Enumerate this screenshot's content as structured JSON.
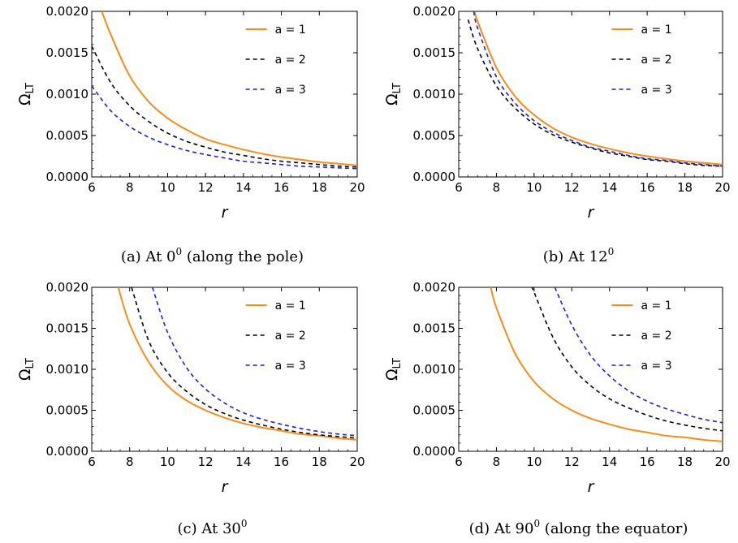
{
  "chart_data": [
    {
      "type": "line",
      "caption": "(a) At 0",
      "caption_sup": "0",
      "caption_tail": "(along the pole)",
      "xlabel": "r",
      "ylabel": "Ω",
      "ylabel_sub": "LT",
      "xlim": [
        6,
        20
      ],
      "ylim": [
        0,
        0.002
      ],
      "xticks": [
        "6",
        "8",
        "10",
        "12",
        "14",
        "16",
        "18",
        "20"
      ],
      "yticks": [
        "0.0000",
        "0.0005",
        "0.0010",
        "0.0015",
        "0.0020"
      ],
      "legend_position": "top-right",
      "series": [
        {
          "name": "a = 1",
          "color": "#F28E1C",
          "style": "solid",
          "x": [
            6.5,
            7,
            8,
            9,
            10,
            11,
            12,
            13,
            14,
            15,
            16,
            17,
            18,
            19,
            20
          ],
          "values": [
            0.00202,
            0.00172,
            0.00122,
            0.00091,
            0.00071,
            0.00057,
            0.00046,
            0.00039,
            0.00033,
            0.00028,
            0.00024,
            0.00021,
            0.00018,
            0.00016,
            0.00014
          ]
        },
        {
          "name": "a = 2",
          "color": "#000000",
          "style": "dashed",
          "x": [
            6,
            7,
            8,
            9,
            10,
            11,
            12,
            13,
            14,
            15,
            16,
            17,
            18,
            19,
            20
          ],
          "values": [
            0.00158,
            0.00114,
            0.00086,
            0.00067,
            0.00053,
            0.00043,
            0.00036,
            0.0003,
            0.00026,
            0.00022,
            0.00019,
            0.00017,
            0.00015,
            0.00013,
            0.00012
          ]
        },
        {
          "name": "a = 3",
          "color": "#1F1FD6",
          "style": "dashed",
          "x": [
            6,
            7,
            8,
            9,
            10,
            11,
            12,
            13,
            14,
            15,
            16,
            17,
            18,
            19,
            20
          ],
          "values": [
            0.0011,
            0.0008,
            0.00061,
            0.00048,
            0.00039,
            0.00032,
            0.00027,
            0.00023,
            0.00019,
            0.00017,
            0.00015,
            0.00013,
            0.00012,
            0.00011,
            0.0001
          ]
        }
      ]
    },
    {
      "type": "line",
      "caption": "(b) At 12",
      "caption_sup": "0",
      "caption_tail": "",
      "xlabel": "r",
      "ylabel": "Ω",
      "ylabel_sub": "LT",
      "xlim": [
        6,
        20
      ],
      "ylim": [
        0,
        0.002
      ],
      "xticks": [
        "6",
        "8",
        "10",
        "12",
        "14",
        "16",
        "18",
        "20"
      ],
      "yticks": [
        "0.0000",
        "0.0005",
        "0.0010",
        "0.0015",
        "0.0020"
      ],
      "legend_position": "top-right",
      "series": [
        {
          "name": "a = 1",
          "color": "#F28E1C",
          "style": "solid",
          "x": [
            6.85,
            7,
            8,
            9,
            10,
            11,
            12,
            13,
            14,
            15,
            16,
            17,
            18,
            19,
            20
          ],
          "values": [
            0.002,
            0.00188,
            0.00132,
            0.00097,
            0.00075,
            0.00059,
            0.00048,
            0.0004,
            0.00034,
            0.00029,
            0.00025,
            0.00022,
            0.00019,
            0.00017,
            0.00015
          ]
        },
        {
          "name": "a = 2",
          "color": "#000000",
          "style": "dashed",
          "x": [
            6.5,
            7,
            8,
            9,
            10,
            11,
            12,
            13,
            14,
            15,
            16,
            17,
            18,
            19,
            20
          ],
          "values": [
            0.0019,
            0.00155,
            0.0011,
            0.00083,
            0.00064,
            0.00051,
            0.00042,
            0.00035,
            0.00029,
            0.00025,
            0.00021,
            0.00019,
            0.00016,
            0.00014,
            0.00013
          ]
        },
        {
          "name": "a = 3",
          "color": "#1F1FD6",
          "style": "dashed",
          "x": [
            6.8,
            7,
            8,
            9,
            10,
            11,
            12,
            13,
            14,
            15,
            16,
            17,
            18,
            19,
            20
          ],
          "values": [
            0.002,
            0.0018,
            0.00121,
            0.00089,
            0.00068,
            0.00054,
            0.00044,
            0.00036,
            0.00031,
            0.00026,
            0.00022,
            0.0002,
            0.00017,
            0.00015,
            0.00013
          ]
        }
      ]
    },
    {
      "type": "line",
      "caption": "(c) At 30",
      "caption_sup": "0",
      "caption_tail": "",
      "xlabel": "r",
      "ylabel": "Ω",
      "ylabel_sub": "LT",
      "xlim": [
        6,
        20
      ],
      "ylim": [
        0,
        0.002
      ],
      "xticks": [
        "6",
        "8",
        "10",
        "12",
        "14",
        "16",
        "18",
        "20"
      ],
      "yticks": [
        "0.0000",
        "0.0005",
        "0.0010",
        "0.0015",
        "0.0020"
      ],
      "legend_position": "top-right",
      "series": [
        {
          "name": "a = 1",
          "color": "#F28E1C",
          "style": "solid",
          "x": [
            7.4,
            8,
            9,
            10,
            11,
            12,
            13,
            14,
            15,
            16,
            17,
            18,
            19,
            20
          ],
          "values": [
            0.002,
            0.00155,
            0.00109,
            0.0008,
            0.00062,
            0.0005,
            0.00041,
            0.00034,
            0.00029,
            0.00025,
            0.00021,
            0.00019,
            0.00016,
            0.00014
          ]
        },
        {
          "name": "a = 2",
          "color": "#000000",
          "style": "dashed",
          "x": [
            8.1,
            9,
            10,
            11,
            12,
            13,
            14,
            15,
            16,
            17,
            18,
            19,
            20
          ],
          "values": [
            0.002,
            0.00135,
            0.00096,
            0.00073,
            0.00057,
            0.00046,
            0.00038,
            0.00032,
            0.00027,
            0.00023,
            0.0002,
            0.00018,
            0.00016
          ]
        },
        {
          "name": "a = 3",
          "color": "#1F1FD6",
          "style": "dashed",
          "x": [
            9.2,
            10,
            11,
            12,
            13,
            14,
            15,
            16,
            17,
            18,
            19,
            20
          ],
          "values": [
            0.002,
            0.00145,
            0.00102,
            0.00076,
            0.00059,
            0.00047,
            0.00039,
            0.00033,
            0.00028,
            0.00024,
            0.00021,
            0.00019
          ]
        }
      ]
    },
    {
      "type": "line",
      "caption": "(d) At 90",
      "caption_sup": "0",
      "caption_tail": "(along the equator)",
      "xlabel": "r",
      "ylabel": "Ω",
      "ylabel_sub": "LT",
      "xlim": [
        6,
        20
      ],
      "ylim": [
        0,
        0.002
      ],
      "xticks": [
        "6",
        "8",
        "10",
        "12",
        "14",
        "16",
        "18",
        "20"
      ],
      "yticks": [
        "0.0000",
        "0.0005",
        "0.0010",
        "0.0015",
        "0.0020"
      ],
      "legend_position": "top-right",
      "series": [
        {
          "name": "a = 1",
          "color": "#F28E1C",
          "style": "solid",
          "x": [
            7.7,
            8,
            9,
            10,
            11,
            12,
            13,
            14,
            15,
            16,
            17,
            18,
            19,
            20
          ],
          "values": [
            0.002,
            0.00175,
            0.00119,
            0.00085,
            0.00064,
            0.0005,
            0.0004,
            0.00033,
            0.00027,
            0.00023,
            0.00019,
            0.00017,
            0.00014,
            0.00012
          ]
        },
        {
          "name": "a = 2",
          "color": "#000000",
          "style": "dashed",
          "x": [
            9.9,
            10,
            11,
            12,
            13,
            14,
            15,
            16,
            17,
            18,
            19,
            20
          ],
          "values": [
            0.002,
            0.00194,
            0.00139,
            0.00103,
            0.0008,
            0.00064,
            0.00053,
            0.00044,
            0.00037,
            0.00032,
            0.00028,
            0.00025
          ]
        },
        {
          "name": "a = 3",
          "color": "#1F1FD6",
          "style": "dashed",
          "x": [
            11.1,
            12,
            13,
            14,
            15,
            16,
            17,
            18,
            19,
            20
          ],
          "values": [
            0.002,
            0.00154,
            0.00117,
            0.00092,
            0.00074,
            0.00061,
            0.00052,
            0.00045,
            0.00039,
            0.00035
          ]
        }
      ]
    }
  ]
}
